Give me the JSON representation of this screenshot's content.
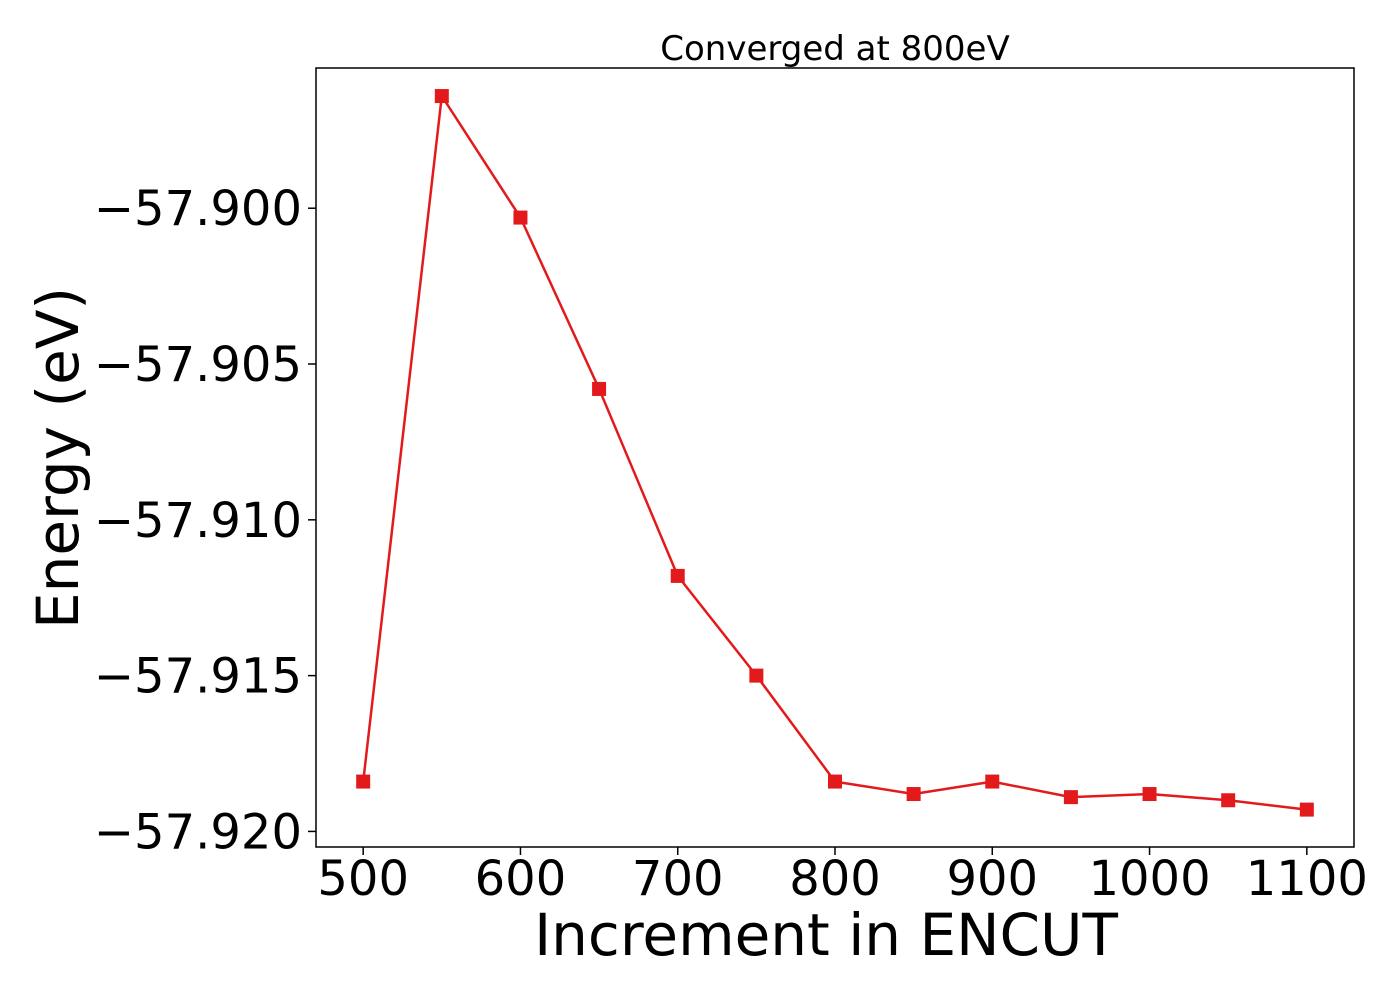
{
  "chart_data": {
    "type": "line",
    "title": "Converged at 800eV",
    "xlabel": "Increment in ENCUT",
    "ylabel": "Energy (eV)",
    "xlim": [
      470,
      1130
    ],
    "ylim": [
      -57.9205,
      -57.8955
    ],
    "xticks": [
      500,
      600,
      700,
      800,
      900,
      1000,
      1100
    ],
    "yticks": [
      -57.9,
      -57.905,
      -57.91,
      -57.915,
      -57.92
    ],
    "ytick_labels": [
      "−57.900",
      "−57.905",
      "−57.910",
      "−57.915",
      "−57.920"
    ],
    "grid": false,
    "series": [
      {
        "color": "#e31a1c",
        "marker": "square",
        "x": [
          500,
          550,
          600,
          650,
          700,
          750,
          800,
          850,
          900,
          950,
          1000,
          1050,
          1100
        ],
        "y": [
          -57.9184,
          -57.8964,
          -57.9003,
          -57.9058,
          -57.9118,
          -57.915,
          -57.9184,
          -57.9188,
          -57.9184,
          -57.9189,
          -57.9188,
          -57.919,
          -57.9193
        ]
      }
    ]
  }
}
